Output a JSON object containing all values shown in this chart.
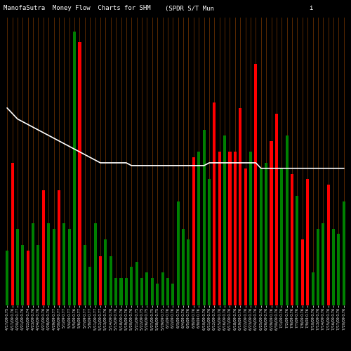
{
  "title_left": "ManofaSutra  Money Flow  Charts for SHM",
  "title_mid": "(SPDR S/T Mun",
  "title_right": "i",
  "background_color": "#000000",
  "bar_colors": [
    "green",
    "red",
    "green",
    "green",
    "red",
    "green",
    "green",
    "red",
    "green",
    "green",
    "red",
    "green",
    "green",
    "green",
    "red",
    "green",
    "green",
    "green",
    "red",
    "green",
    "green",
    "green",
    "green",
    "green",
    "green",
    "green",
    "green",
    "green",
    "green",
    "green",
    "green",
    "green",
    "green",
    "green",
    "green",
    "green",
    "red",
    "green",
    "green",
    "green",
    "red",
    "red",
    "green",
    "red",
    "red",
    "red",
    "red",
    "green",
    "red",
    "green",
    "green",
    "red",
    "red",
    "green",
    "green",
    "red",
    "green",
    "red",
    "red",
    "green",
    "green",
    "green",
    "red",
    "green",
    "green",
    "green"
  ],
  "bar_heights": [
    0.2,
    0.52,
    0.28,
    0.22,
    0.2,
    0.3,
    0.22,
    0.42,
    0.3,
    0.28,
    0.42,
    0.3,
    0.28,
    1.0,
    0.96,
    0.22,
    0.14,
    0.3,
    0.18,
    0.24,
    0.18,
    0.1,
    0.1,
    0.1,
    0.14,
    0.16,
    0.1,
    0.12,
    0.1,
    0.08,
    0.12,
    0.1,
    0.08,
    0.38,
    0.28,
    0.24,
    0.54,
    0.56,
    0.64,
    0.46,
    0.74,
    0.56,
    0.62,
    0.56,
    0.56,
    0.72,
    0.5,
    0.56,
    0.88,
    0.5,
    0.52,
    0.6,
    0.7,
    0.5,
    0.62,
    0.48,
    0.4,
    0.24,
    0.46,
    0.12,
    0.28,
    0.3,
    0.44,
    0.28,
    0.26,
    0.38
  ],
  "white_line": [
    0.72,
    0.7,
    0.68,
    0.67,
    0.66,
    0.65,
    0.64,
    0.63,
    0.62,
    0.61,
    0.6,
    0.59,
    0.58,
    0.57,
    0.56,
    0.55,
    0.54,
    0.53,
    0.52,
    0.52,
    0.52,
    0.52,
    0.52,
    0.52,
    0.51,
    0.51,
    0.51,
    0.51,
    0.51,
    0.51,
    0.51,
    0.51,
    0.51,
    0.51,
    0.51,
    0.51,
    0.51,
    0.51,
    0.51,
    0.52,
    0.52,
    0.52,
    0.52,
    0.52,
    0.52,
    0.52,
    0.52,
    0.52,
    0.52,
    0.5,
    0.5,
    0.5,
    0.5,
    0.5,
    0.5,
    0.5,
    0.5,
    0.5,
    0.5,
    0.5,
    0.5,
    0.5,
    0.5,
    0.5,
    0.5,
    0.5
  ],
  "xlabel_fontsize": 3.5,
  "title_fontsize": 6.5,
  "grid_color": "#7B3800",
  "bar_width": 0.55,
  "ylim": [
    0,
    1.05
  ],
  "tick_labels": [
    "4/17/09 0.75",
    "4/17/09 0.76",
    "4/20/09 0.77",
    "4/21/09 0.76",
    "4/22/09 0.74",
    "4/23/09 0.76",
    "4/24/09 0.76",
    "4/27/09 0.76",
    "4/28/09 0.76",
    "4/29/09 0.77",
    "4/30/09 0.77",
    "5/1/09 0.77",
    "5/4/09 0.77",
    "5/5/09 0.76",
    "5/6/09 0.77",
    "5/7/09 0.77",
    "5/8/09 0.77",
    "5/11/09 0.77",
    "5/12/09 0.77",
    "5/13/09 0.76",
    "5/14/09 0.76",
    "5/15/09 0.76",
    "5/18/09 0.76",
    "5/19/09 0.76",
    "5/20/09 0.76",
    "5/21/09 0.75",
    "5/22/09 0.75",
    "5/26/09 0.75",
    "5/27/09 0.75",
    "5/28/09 0.75",
    "5/29/09 0.75",
    "6/1/09 0.76",
    "6/2/09 0.76",
    "6/3/09 0.76",
    "6/4/09 0.76",
    "6/5/09 0.76",
    "6/8/09 0.76",
    "6/9/09 0.76",
    "6/10/09 0.76",
    "6/11/09 0.76",
    "6/12/09 0.76",
    "6/15/09 0.76",
    "6/16/09 0.76",
    "6/17/09 0.76",
    "6/18/09 0.76",
    "6/19/09 0.76",
    "6/22/09 0.76",
    "6/23/09 0.76",
    "6/24/09 0.76",
    "6/25/09 0.76",
    "6/26/09 0.76",
    "6/29/09 0.76",
    "6/30/09 0.76",
    "7/1/09 0.76",
    "7/2/09 0.76",
    "7/6/09 0.76",
    "7/7/09 0.76",
    "7/8/09 0.76",
    "7/9/09 0.76",
    "7/10/09 0.76",
    "7/13/09 0.76",
    "7/14/09 0.76",
    "7/15/09 0.76",
    "7/16/09 0.76",
    "7/17/09 0.76",
    "7/20/09 0.76"
  ]
}
